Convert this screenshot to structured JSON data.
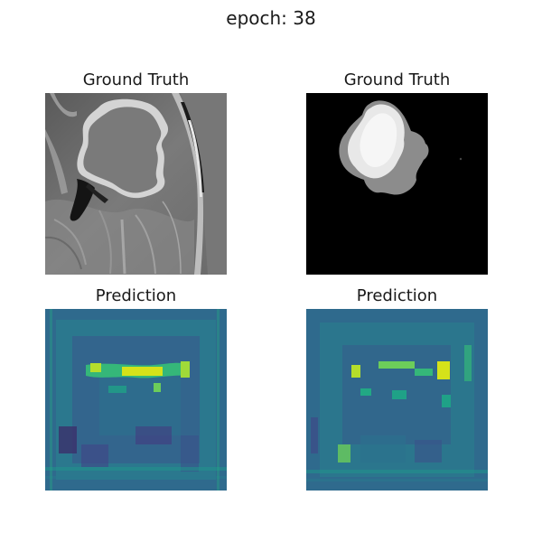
{
  "figure": {
    "suptitle": "epoch: 38",
    "panels": [
      {
        "title": "Ground Truth",
        "image": "mri-brain-slice-with-tumor-cavity",
        "colormap": "grayscale"
      },
      {
        "title": "Ground Truth",
        "image": "binary-tumor-mask",
        "colormap": "grayscale"
      },
      {
        "title": "Prediction",
        "image": "predicted-heatmap-1",
        "colormap": "viridis"
      },
      {
        "title": "Prediction",
        "image": "predicted-heatmap-2",
        "colormap": "viridis"
      }
    ]
  }
}
